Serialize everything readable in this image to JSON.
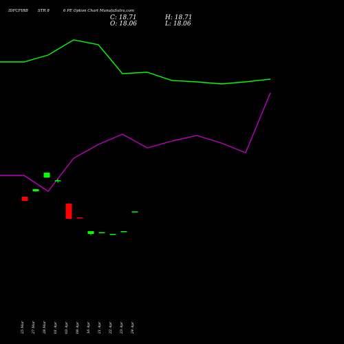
{
  "header": {
    "symbol": "IDFCFIRB",
    "strike": "STR 8",
    "title_rest": "6  PE Option  Chart MunafaSutra.com",
    "close_label": "C: 18.71",
    "high_label": "H: 18.71",
    "open_label": "O: 18.06",
    "low_label": "L: 18.06"
  },
  "colors": {
    "background": "#000000",
    "upper_line": "#00ff00",
    "lower_line": "#c000c0",
    "bull": "#00ff00",
    "bear": "#ff0000",
    "text": "#ffffff"
  },
  "chart_data": {
    "type": "candlestick",
    "x": [
      "25 Mar",
      "27 Mar",
      "28 Mar",
      "01 Apr",
      "03 Apr",
      "08 Apr",
      "16 Apr",
      "21 Apr",
      "22 Apr",
      "23 Apr",
      "24 Apr"
    ],
    "candles": [
      {
        "date": "25 Mar",
        "open": 40.0,
        "high": 40.0,
        "low": 34.0,
        "close": 34.0,
        "color": "bear"
      },
      {
        "date": "27 Mar",
        "open": 48.0,
        "high": 51.0,
        "low": 47.0,
        "close": 51.0,
        "color": "bull"
      },
      {
        "date": "28 Mar",
        "open": 68.0,
        "high": 75.0,
        "low": 68.0,
        "close": 75.0,
        "color": "bull"
      },
      {
        "date": "01 Apr",
        "open": 63.0,
        "high": 66.0,
        "low": 60.0,
        "close": 64.0,
        "color": "bull"
      },
      {
        "date": "03 Apr",
        "open": 30.0,
        "high": 31.0,
        "low": 8.0,
        "close": 8.0,
        "color": "bear"
      },
      {
        "date": "08 Apr",
        "open": 10.0,
        "high": 10.0,
        "low": 9.5,
        "close": 9.5,
        "color": "bear"
      },
      {
        "date": "16 Apr",
        "open": -14.0,
        "high": -10.0,
        "low": -16.0,
        "close": -10.0,
        "color": "bull"
      },
      {
        "date": "21 Apr",
        "open": -13.0,
        "high": -11.5,
        "low": -13.0,
        "close": -11.5,
        "color": "bull"
      },
      {
        "date": "22 Apr",
        "open": -15.0,
        "high": -14.0,
        "low": -15.0,
        "close": -14.0,
        "color": "bull"
      },
      {
        "date": "23 Apr",
        "open": -11.0,
        "high": -10.0,
        "low": -11.0,
        "close": -10.0,
        "color": "bull"
      },
      {
        "date": "24 Apr",
        "open": 18.06,
        "high": 18.71,
        "low": 18.06,
        "close": 18.71,
        "color": "bull"
      }
    ],
    "upper_line": [
      290,
      290,
      300,
      322,
      315,
      273,
      275,
      263,
      261,
      258,
      261,
      265
    ],
    "lower_line": [
      125,
      125,
      102,
      150,
      170,
      185,
      165,
      175,
      183,
      172,
      158,
      245
    ]
  }
}
